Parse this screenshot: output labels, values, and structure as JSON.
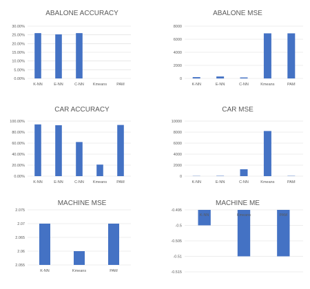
{
  "colors": {
    "bar": "#4472c4",
    "grid": "#d9d9d9",
    "text": "#595959"
  },
  "chart_data": [
    {
      "type": "bar",
      "title": "ABALONE ACCURACY",
      "categories": [
        "K-NN",
        "E-NN",
        "C-NN",
        "Kmeans",
        "PAM"
      ],
      "values": [
        0.26,
        0.253,
        0.26,
        0,
        0
      ],
      "ylim": [
        0,
        0.3
      ],
      "yticks": [
        0,
        0.05,
        0.1,
        0.15,
        0.2,
        0.25,
        0.3
      ],
      "ytick_labels": [
        "0.00%",
        "5.00%",
        "10.00%",
        "15.00%",
        "20.00%",
        "25.00%",
        "30.00%"
      ],
      "grid": true,
      "category_labels_below_axis": true
    },
    {
      "type": "bar",
      "title": "ABALONE MSE",
      "categories": [
        "K-NN",
        "E-NN",
        "C-NN",
        "Kmeans",
        "PAM"
      ],
      "values": [
        200,
        300,
        150,
        6900,
        6900
      ],
      "ylim": [
        0,
        8000
      ],
      "yticks": [
        0,
        2000,
        4000,
        6000,
        8000
      ],
      "ytick_labels": [
        "0",
        "2000",
        "4000",
        "6000",
        "8000"
      ],
      "grid": true,
      "category_labels_below_axis": true
    },
    {
      "type": "bar",
      "title": "CAR ACCURACY",
      "categories": [
        "K-NN",
        "E-NN",
        "C-NN",
        "Kmeans",
        "PAM"
      ],
      "values": [
        0.94,
        0.925,
        0.62,
        0.21,
        0.93
      ],
      "ylim": [
        0,
        1.0
      ],
      "yticks": [
        0,
        0.2,
        0.4,
        0.6,
        0.8,
        1.0
      ],
      "ytick_labels": [
        "0.00%",
        "20.00%",
        "40.00%",
        "60.00%",
        "80.00%",
        "100.00%"
      ],
      "grid": true,
      "category_labels_below_axis": true
    },
    {
      "type": "bar",
      "title": "CAR MSE",
      "categories": [
        "K-NN",
        "E-NN",
        "C-NN",
        "Kmeans",
        "PAM"
      ],
      "values": [
        40,
        60,
        1250,
        8200,
        50
      ],
      "ylim": [
        0,
        10000
      ],
      "yticks": [
        0,
        2000,
        4000,
        6000,
        8000,
        10000
      ],
      "ytick_labels": [
        "0",
        "2000",
        "4000",
        "6000",
        "8000",
        "10000"
      ],
      "grid": true,
      "category_labels_below_axis": true
    },
    {
      "type": "bar",
      "title": "MACHINE MSE",
      "categories": [
        "K-NN",
        "Kmeans",
        "PAM"
      ],
      "values": [
        2.07,
        2.06,
        2.07
      ],
      "ylim": [
        2.055,
        2.075
      ],
      "yticks": [
        2.055,
        2.06,
        2.065,
        2.07,
        2.075
      ],
      "ytick_labels": [
        "2.055",
        "2.06",
        "2.065",
        "2.07",
        "2.075"
      ],
      "grid": true,
      "category_labels_below_axis": true
    },
    {
      "type": "bar",
      "title": "MACHINE ME",
      "categories": [
        "K-NN",
        "Kmeans",
        "PAM"
      ],
      "values": [
        -0.5,
        -0.51,
        -0.51
      ],
      "ylim": [
        -0.515,
        -0.495
      ],
      "yticks": [
        -0.515,
        -0.51,
        -0.505,
        -0.5,
        -0.495
      ],
      "ytick_labels": [
        "-0.515",
        "-0.51",
        "-0.505",
        "-0.5",
        "-0.495"
      ],
      "grid": true,
      "category_labels_below_axis": false
    }
  ]
}
